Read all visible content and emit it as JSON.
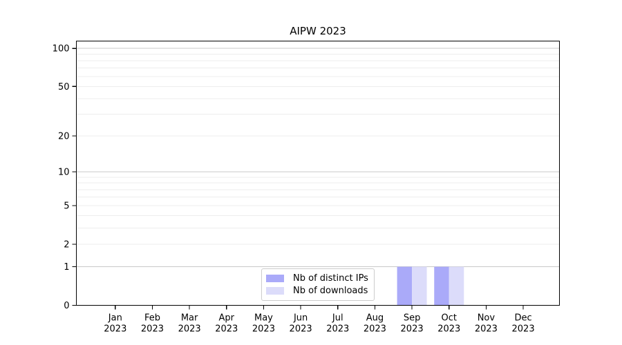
{
  "chart_data": {
    "type": "bar",
    "title": "AIPW 2023",
    "categories": [
      {
        "month": "Jan",
        "year": "2023"
      },
      {
        "month": "Feb",
        "year": "2023"
      },
      {
        "month": "Mar",
        "year": "2023"
      },
      {
        "month": "Apr",
        "year": "2023"
      },
      {
        "month": "May",
        "year": "2023"
      },
      {
        "month": "Jun",
        "year": "2023"
      },
      {
        "month": "Jul",
        "year": "2023"
      },
      {
        "month": "Aug",
        "year": "2023"
      },
      {
        "month": "Sep",
        "year": "2023"
      },
      {
        "month": "Oct",
        "year": "2023"
      },
      {
        "month": "Nov",
        "year": "2023"
      },
      {
        "month": "Dec",
        "year": "2023"
      }
    ],
    "series": [
      {
        "name": "Nb of distinct IPs",
        "color": "#aaaaf9",
        "values": [
          0,
          0,
          0,
          0,
          0,
          0,
          0,
          0,
          1,
          1,
          0,
          0
        ]
      },
      {
        "name": "Nb of downloads",
        "color": "#dcdcfa",
        "values": [
          0,
          0,
          0,
          0,
          0,
          0,
          0,
          0,
          1,
          1,
          0,
          0
        ]
      }
    ],
    "y_axis": {
      "scale": "symlog (position = log10(1+value))",
      "tick_values": [
        0,
        1,
        2,
        5,
        10,
        20,
        50,
        100
      ],
      "major_grid_values": [
        1,
        10,
        100
      ],
      "minor_grid_values": [
        2,
        3,
        4,
        5,
        6,
        7,
        8,
        9,
        20,
        30,
        40,
        50,
        60,
        70,
        80,
        90
      ],
      "range": [
        0,
        116
      ]
    },
    "grid": "horizontal only",
    "legend_position": "lower center",
    "colors": {
      "spine": "#000000",
      "tick_text": "#000000",
      "grid_major": "#c8c8c8",
      "grid_minor": "#ededed",
      "background": "#ffffff"
    }
  }
}
